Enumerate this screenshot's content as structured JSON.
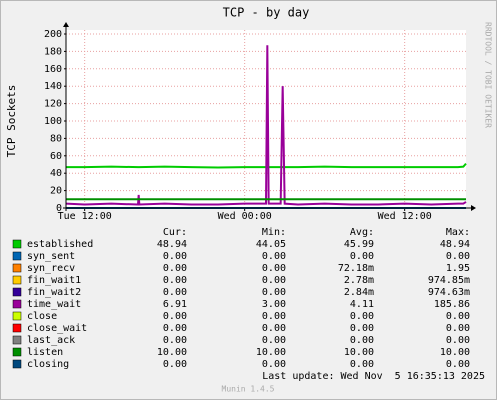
{
  "chart_data": {
    "type": "line",
    "title": "TCP - by day",
    "y_label": "TCP Sockets",
    "side_text": "RRDTOOL / TOBI OETIKER",
    "last_update": "Last update: Wed Nov  5 16:35:13 2025",
    "footer": "Munin 1.4.5",
    "legend_headers": [
      "Cur:",
      "Min:",
      "Avg:",
      "Max:"
    ],
    "grid": true,
    "ylim": [
      0,
      200
    ],
    "yticks": [
      0,
      20,
      40,
      60,
      80,
      100,
      120,
      140,
      160,
      180,
      200
    ],
    "xlim": [
      10.6,
      40.6
    ],
    "xticks": [
      {
        "value": 12,
        "label": "Tue 12:00"
      },
      {
        "value": 24,
        "label": "Wed 00:00"
      },
      {
        "value": 36,
        "label": "Wed 12:00"
      }
    ],
    "x": [
      10.6,
      12,
      14,
      16,
      16.05,
      16.1,
      18,
      20,
      22,
      24,
      25.6,
      25.7,
      25.8,
      26.7,
      26.85,
      27.0,
      28,
      30,
      32,
      34,
      36,
      38,
      40,
      40.4,
      40.6
    ],
    "series": [
      {
        "name": "established",
        "color": "#00cc00",
        "cur": "48.94",
        "min": "44.05",
        "avg": "45.99",
        "max": "48.94",
        "values": [
          47,
          47,
          47.5,
          47,
          47,
          47,
          47.5,
          47,
          46.5,
          47,
          47,
          47,
          47,
          47,
          47,
          47,
          47,
          47.5,
          47,
          47,
          47,
          47,
          47,
          47.5,
          51
        ]
      },
      {
        "name": "syn_sent",
        "color": "#0066b3",
        "cur": "0.00",
        "min": "0.00",
        "avg": "0.00",
        "max": "0.00",
        "values": [
          0,
          0,
          0,
          0,
          0,
          0,
          0,
          0,
          0,
          0,
          0,
          0,
          0,
          0,
          0,
          0,
          0,
          0,
          0,
          0,
          0,
          0,
          0,
          0,
          0
        ]
      },
      {
        "name": "syn_recv",
        "color": "#ff8000",
        "cur": "0.00",
        "min": "0.00",
        "avg": "72.18m",
        "max": "1.95",
        "values": [
          0,
          0,
          0,
          0,
          0,
          0,
          0,
          0,
          0,
          0,
          0,
          0,
          0,
          0,
          0,
          0,
          0,
          0,
          0,
          0,
          0,
          0,
          0,
          0,
          0
        ]
      },
      {
        "name": "fin_wait1",
        "color": "#ffcc00",
        "cur": "0.00",
        "min": "0.00",
        "avg": "2.78m",
        "max": "974.85m",
        "values": [
          0,
          0,
          0,
          0,
          0,
          0,
          0,
          0,
          0,
          0,
          0,
          0,
          0,
          0,
          0,
          0,
          0,
          0,
          0,
          0,
          0,
          0,
          0,
          0,
          0
        ]
      },
      {
        "name": "fin_wait2",
        "color": "#330099",
        "cur": "0.00",
        "min": "0.00",
        "avg": "2.84m",
        "max": "974.63m",
        "values": [
          0,
          0,
          0,
          0,
          0,
          0,
          0,
          0,
          0,
          0,
          0,
          0,
          0,
          0,
          0,
          0,
          0,
          0,
          0,
          0,
          0,
          0,
          0,
          0,
          0
        ]
      },
      {
        "name": "time_wait",
        "color": "#990099",
        "cur": "6.91",
        "min": "3.00",
        "avg": "4.11",
        "max": "185.86",
        "values": [
          5,
          4,
          5,
          4,
          15,
          4,
          5,
          4,
          4,
          5,
          5,
          187,
          5,
          5,
          140,
          5,
          4,
          5,
          4,
          4,
          5,
          4,
          5,
          5,
          7
        ]
      },
      {
        "name": "close",
        "color": "#ccff00",
        "cur": "0.00",
        "min": "0.00",
        "avg": "0.00",
        "max": "0.00",
        "values": [
          0,
          0,
          0,
          0,
          0,
          0,
          0,
          0,
          0,
          0,
          0,
          0,
          0,
          0,
          0,
          0,
          0,
          0,
          0,
          0,
          0,
          0,
          0,
          0,
          0
        ]
      },
      {
        "name": "close_wait",
        "color": "#ff0000",
        "cur": "0.00",
        "min": "0.00",
        "avg": "0.00",
        "max": "0.00",
        "values": [
          0,
          0,
          0,
          0,
          0,
          0,
          0,
          0,
          0,
          0,
          0,
          0,
          0,
          0,
          0,
          0,
          0,
          0,
          0,
          0,
          0,
          0,
          0,
          0,
          0
        ]
      },
      {
        "name": "last_ack",
        "color": "#808080",
        "cur": "0.00",
        "min": "0.00",
        "avg": "0.00",
        "max": "0.00",
        "values": [
          0,
          0,
          0,
          0,
          0,
          0,
          0,
          0,
          0,
          0,
          0,
          0,
          0,
          0,
          0,
          0,
          0,
          0,
          0,
          0,
          0,
          0,
          0,
          0,
          0
        ]
      },
      {
        "name": "listen",
        "color": "#008f00",
        "cur": "10.00",
        "min": "10.00",
        "avg": "10.00",
        "max": "10.00",
        "values": [
          10,
          10,
          10,
          10,
          10,
          10,
          10,
          10,
          10,
          10,
          10,
          10,
          10,
          10,
          10,
          10,
          10,
          10,
          10,
          10,
          10,
          10,
          10,
          10,
          10
        ]
      },
      {
        "name": "closing",
        "color": "#00487d",
        "cur": "0.00",
        "min": "0.00",
        "avg": "0.00",
        "max": "0.00",
        "values": [
          0,
          0,
          0,
          0,
          0,
          0,
          0,
          0,
          0,
          0,
          0,
          0,
          0,
          0,
          0,
          0,
          0,
          0,
          0,
          0,
          0,
          0,
          0,
          0,
          0
        ]
      }
    ]
  }
}
